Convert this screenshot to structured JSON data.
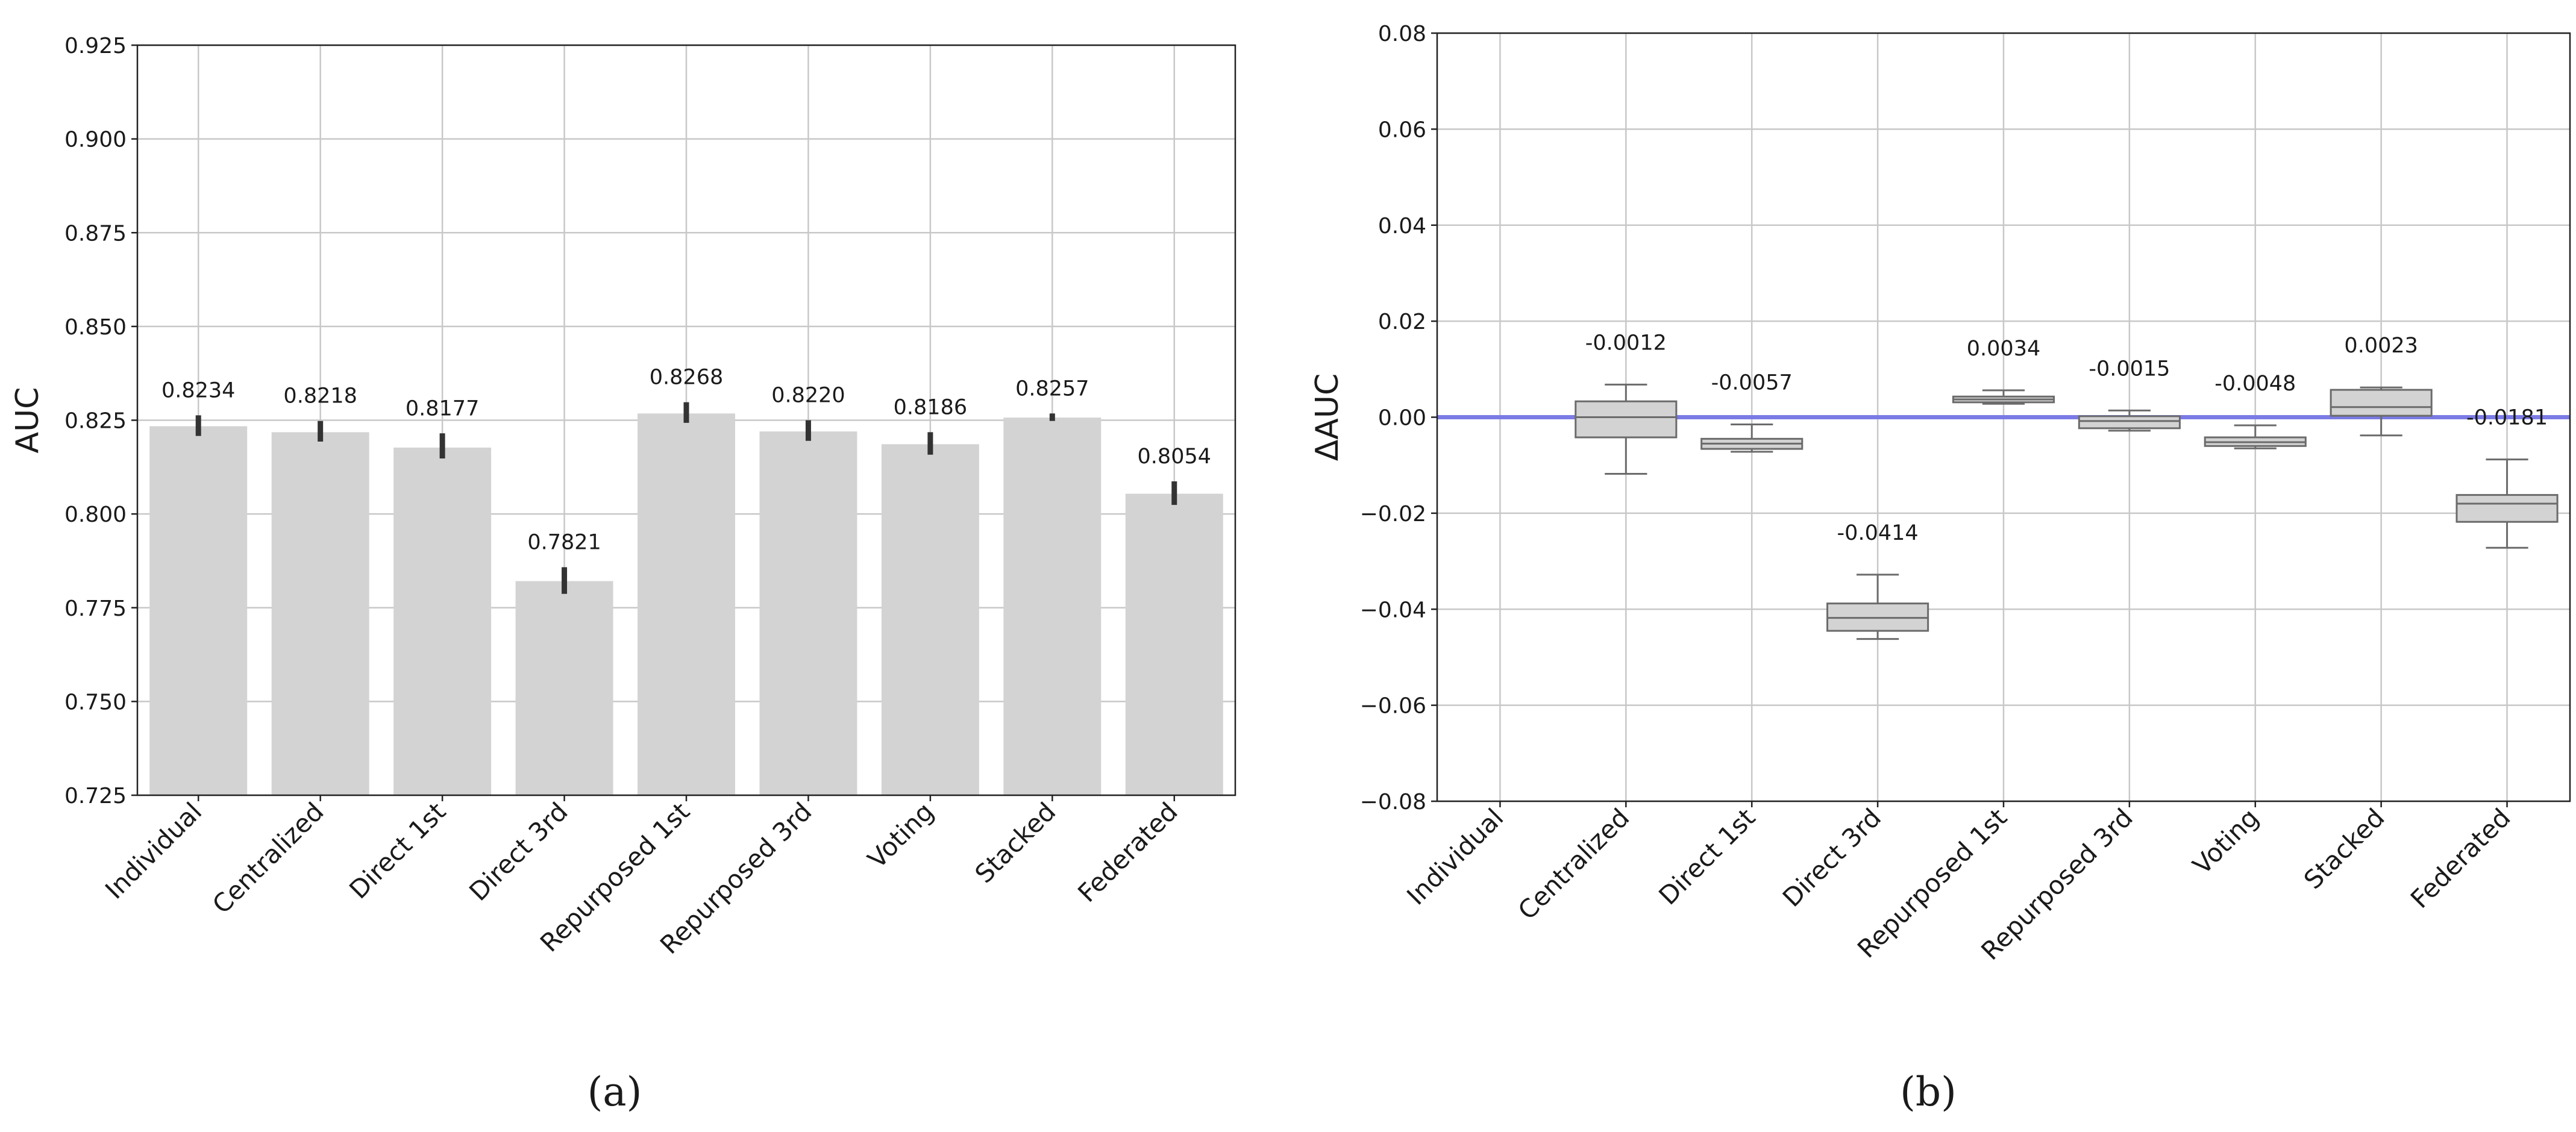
{
  "panel_labels": [
    "(a)",
    "(b)"
  ],
  "chart_data": [
    {
      "type": "bar",
      "panel": "(a)",
      "ylabel": "AUC",
      "ylim": [
        0.725,
        0.925
      ],
      "yticks": [
        "0.725",
        "0.750",
        "0.775",
        "0.800",
        "0.825",
        "0.850",
        "0.875",
        "0.900",
        "0.925"
      ],
      "categories": [
        "Individual",
        "Centralized",
        "Direct 1st",
        "Direct 3rd",
        "Repurposed 1st",
        "Repurposed 3rd",
        "Voting",
        "Stacked",
        "Federated"
      ],
      "values": [
        0.8234,
        0.8218,
        0.8177,
        0.7821,
        0.8268,
        0.822,
        0.8186,
        0.8257,
        0.8054
      ],
      "value_labels": [
        "0.8234",
        "0.8218",
        "0.8177",
        "0.7821",
        "0.8268",
        "0.8220",
        "0.8186",
        "0.8257",
        "0.8054"
      ],
      "error_low": [
        0.8208,
        0.8193,
        0.8148,
        0.7787,
        0.8243,
        0.8195,
        0.8158,
        0.8248,
        0.8024
      ],
      "error_high": [
        0.8263,
        0.8248,
        0.8215,
        0.7858,
        0.8298,
        0.825,
        0.8218,
        0.8268,
        0.8087
      ],
      "bar_color": "#d3d3d3",
      "error_color": "#333333",
      "grid": true
    },
    {
      "type": "box",
      "panel": "(b)",
      "ylabel": "ΔAUC",
      "ylim": [
        -0.08,
        0.08
      ],
      "yticks": [
        "−0.08",
        "−0.06",
        "−0.04",
        "−0.02",
        "0.00",
        "0.02",
        "0.04",
        "0.06",
        "0.08"
      ],
      "categories": [
        "Individual",
        "Centralized",
        "Direct 1st",
        "Direct 3rd",
        "Repurposed 1st",
        "Repurposed 3rd",
        "Voting",
        "Stacked",
        "Federated"
      ],
      "boxes": [
        null,
        {
          "min": -0.0118,
          "q1": -0.0042,
          "median": 0.0,
          "q3": 0.0033,
          "max": 0.0068
        },
        {
          "min": -0.0072,
          "q1": -0.0066,
          "median": -0.0055,
          "q3": -0.0045,
          "max": -0.0015
        },
        {
          "min": -0.0462,
          "q1": -0.0445,
          "median": -0.0418,
          "q3": -0.0388,
          "max": -0.0328
        },
        {
          "min": 0.0028,
          "q1": 0.0031,
          "median": 0.0037,
          "q3": 0.0043,
          "max": 0.0056
        },
        {
          "min": -0.0028,
          "q1": -0.0023,
          "median": -0.0008,
          "q3": 0.0002,
          "max": 0.0014
        },
        {
          "min": -0.0065,
          "q1": -0.006,
          "median": -0.0052,
          "q3": -0.0042,
          "max": -0.0017
        },
        {
          "min": -0.0038,
          "q1": 0.0003,
          "median": 0.0021,
          "q3": 0.0057,
          "max": 0.0062
        },
        {
          "min": -0.0272,
          "q1": -0.0218,
          "median": -0.018,
          "q3": -0.0162,
          "max": -0.0088
        }
      ],
      "value_labels": [
        "",
        "-0.0012",
        "-0.0057",
        "-0.0414",
        "0.0034",
        "-0.0015",
        "-0.0048",
        "0.0023",
        "-0.0181"
      ],
      "reference_line": 0.0,
      "reference_color": "#7b7be6",
      "box_color": "#d3d3d3",
      "grid": true
    }
  ]
}
